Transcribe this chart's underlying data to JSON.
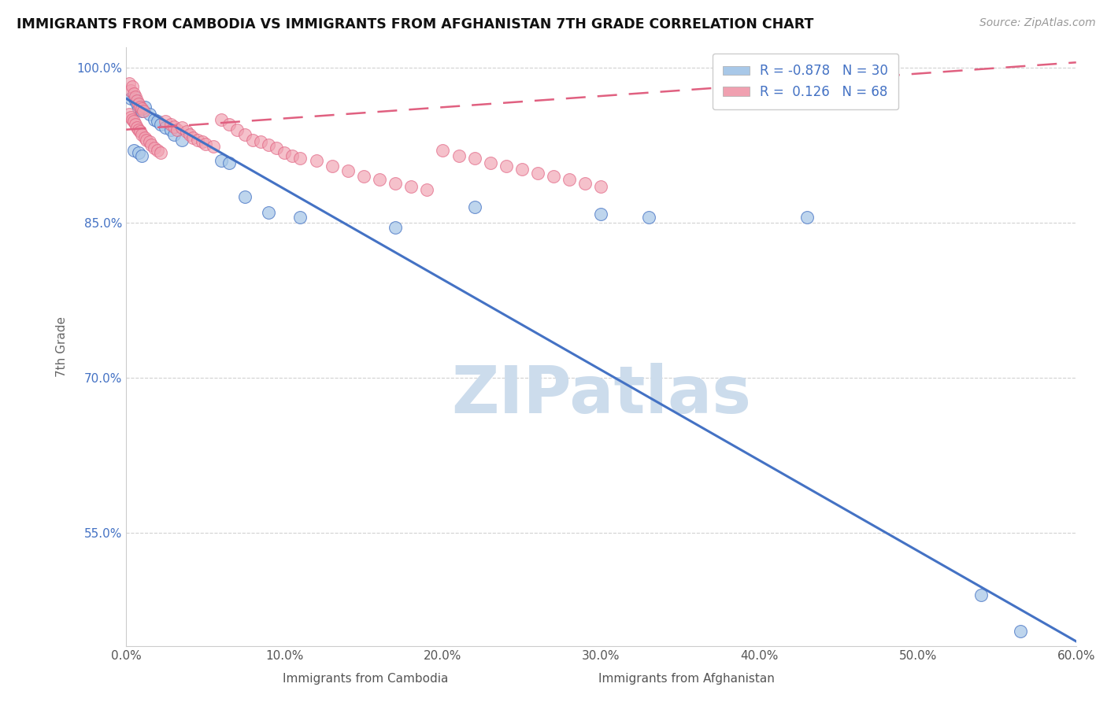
{
  "title": "IMMIGRANTS FROM CAMBODIA VS IMMIGRANTS FROM AFGHANISTAN 7TH GRADE CORRELATION CHART",
  "source": "Source: ZipAtlas.com",
  "xlabel_cambodia": "Immigrants from Cambodia",
  "xlabel_afghanistan": "Immigrants from Afghanistan",
  "ylabel": "7th Grade",
  "xlim": [
    0.0,
    0.6
  ],
  "ylim": [
    0.44,
    1.02
  ],
  "xticks": [
    0.0,
    0.1,
    0.2,
    0.3,
    0.4,
    0.5,
    0.6
  ],
  "xtick_labels": [
    "0.0%",
    "10.0%",
    "20.0%",
    "30.0%",
    "40.0%",
    "50.0%",
    "60.0%"
  ],
  "yticks": [
    0.55,
    0.7,
    0.85,
    1.0
  ],
  "ytick_labels": [
    "55.0%",
    "70.0%",
    "85.0%",
    "100.0%"
  ],
  "R_cambodia": -0.878,
  "N_cambodia": 30,
  "R_afghanistan": 0.126,
  "N_afghanistan": 68,
  "color_cambodia": "#a8c8e8",
  "color_afghanistan": "#f0a0b0",
  "trendline_cambodia_color": "#4472c4",
  "trendline_afghanistan_color": "#e06080",
  "watermark": "ZIPatlas",
  "watermark_color": "#ccdcec",
  "blue_trendline": [
    [
      0.0,
      0.97
    ],
    [
      0.6,
      0.445
    ]
  ],
  "pink_trendline": [
    [
      0.0,
      0.94
    ],
    [
      0.6,
      1.005
    ]
  ],
  "blue_scatter": [
    [
      0.003,
      0.97
    ],
    [
      0.005,
      0.972
    ],
    [
      0.006,
      0.968
    ],
    [
      0.007,
      0.965
    ],
    [
      0.008,
      0.96
    ],
    [
      0.01,
      0.958
    ],
    [
      0.012,
      0.962
    ],
    [
      0.015,
      0.955
    ],
    [
      0.018,
      0.95
    ],
    [
      0.02,
      0.948
    ],
    [
      0.022,
      0.945
    ],
    [
      0.025,
      0.942
    ],
    [
      0.028,
      0.94
    ],
    [
      0.03,
      0.935
    ],
    [
      0.035,
      0.93
    ],
    [
      0.005,
      0.92
    ],
    [
      0.008,
      0.918
    ],
    [
      0.01,
      0.915
    ],
    [
      0.06,
      0.91
    ],
    [
      0.065,
      0.908
    ],
    [
      0.075,
      0.875
    ],
    [
      0.09,
      0.86
    ],
    [
      0.11,
      0.855
    ],
    [
      0.17,
      0.845
    ],
    [
      0.22,
      0.865
    ],
    [
      0.3,
      0.858
    ],
    [
      0.33,
      0.855
    ],
    [
      0.43,
      0.855
    ],
    [
      0.54,
      0.49
    ],
    [
      0.565,
      0.455
    ]
  ],
  "pink_scatter": [
    [
      0.002,
      0.985
    ],
    [
      0.003,
      0.978
    ],
    [
      0.004,
      0.982
    ],
    [
      0.005,
      0.975
    ],
    [
      0.006,
      0.972
    ],
    [
      0.007,
      0.968
    ],
    [
      0.008,
      0.965
    ],
    [
      0.009,
      0.962
    ],
    [
      0.01,
      0.96
    ],
    [
      0.011,
      0.958
    ],
    [
      0.002,
      0.955
    ],
    [
      0.003,
      0.952
    ],
    [
      0.004,
      0.95
    ],
    [
      0.005,
      0.948
    ],
    [
      0.006,
      0.945
    ],
    [
      0.007,
      0.942
    ],
    [
      0.008,
      0.94
    ],
    [
      0.009,
      0.938
    ],
    [
      0.01,
      0.935
    ],
    [
      0.012,
      0.932
    ],
    [
      0.013,
      0.93
    ],
    [
      0.015,
      0.928
    ],
    [
      0.016,
      0.925
    ],
    [
      0.018,
      0.922
    ],
    [
      0.02,
      0.92
    ],
    [
      0.022,
      0.918
    ],
    [
      0.025,
      0.948
    ],
    [
      0.028,
      0.945
    ],
    [
      0.03,
      0.943
    ],
    [
      0.032,
      0.94
    ],
    [
      0.035,
      0.942
    ],
    [
      0.038,
      0.938
    ],
    [
      0.04,
      0.935
    ],
    [
      0.042,
      0.932
    ],
    [
      0.045,
      0.93
    ],
    [
      0.048,
      0.928
    ],
    [
      0.05,
      0.926
    ],
    [
      0.055,
      0.924
    ],
    [
      0.06,
      0.95
    ],
    [
      0.065,
      0.945
    ],
    [
      0.07,
      0.94
    ],
    [
      0.075,
      0.935
    ],
    [
      0.08,
      0.93
    ],
    [
      0.085,
      0.928
    ],
    [
      0.09,
      0.925
    ],
    [
      0.095,
      0.922
    ],
    [
      0.1,
      0.918
    ],
    [
      0.105,
      0.915
    ],
    [
      0.11,
      0.912
    ],
    [
      0.12,
      0.91
    ],
    [
      0.13,
      0.905
    ],
    [
      0.14,
      0.9
    ],
    [
      0.15,
      0.895
    ],
    [
      0.16,
      0.892
    ],
    [
      0.17,
      0.888
    ],
    [
      0.18,
      0.885
    ],
    [
      0.19,
      0.882
    ],
    [
      0.2,
      0.92
    ],
    [
      0.21,
      0.915
    ],
    [
      0.22,
      0.912
    ],
    [
      0.23,
      0.908
    ],
    [
      0.24,
      0.905
    ],
    [
      0.25,
      0.902
    ],
    [
      0.26,
      0.898
    ],
    [
      0.27,
      0.895
    ],
    [
      0.28,
      0.892
    ],
    [
      0.29,
      0.888
    ],
    [
      0.3,
      0.885
    ]
  ]
}
